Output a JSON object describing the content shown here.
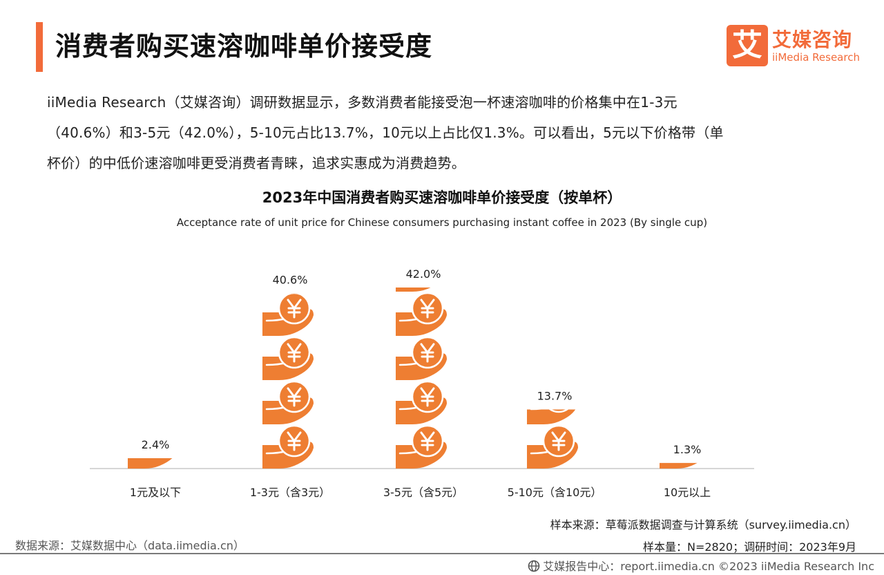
{
  "colors": {
    "accent": "#F26B3A",
    "coin": "#EE7E32",
    "coin_light": "#F5A36B"
  },
  "header": {
    "title": "消费者购买速溶咖啡单价接受度"
  },
  "logo": {
    "mark_char": "艾",
    "name_cn": "艾媒咨询",
    "name_en": "iiMedia Research"
  },
  "description": {
    "line1": "iiMedia Research（艾媒咨询）调研数据显示，多数消费者能接受泡一杯速溶咖啡的价格集中在1-3元",
    "line2": "（40.6%）和3-5元（42.0%），5-10元占比13.7%，10元以上占比仅1.3%。可以看出，5元以下价格带（单",
    "line3": "杯价）的中低价速溶咖啡更受消费者青睐，追求实惠成为消费趋势。"
  },
  "chart_data": {
    "type": "bar",
    "title": "2023年中国消费者购买速溶咖啡单价接受度（按单杯）",
    "subtitle": "Acceptance rate of unit price for Chinese consumers purchasing instant coffee in 2023 (By single cup)",
    "categories": [
      "1元及以下",
      "1-3元（含3元）",
      "3-5元（含5元）",
      "5-10元（含10元）",
      "10元以上"
    ],
    "values": [
      2.4,
      40.6,
      42.0,
      13.7,
      1.3
    ],
    "value_labels": [
      "2.4%",
      "40.6%",
      "42.0%",
      "13.7%",
      "1.3%"
    ],
    "unit": "%",
    "ylim": [
      0,
      42.0
    ],
    "icon": "yen-coin-in-hand-icon",
    "grid": false,
    "legend": "none"
  },
  "notes": {
    "source_sample": "样本来源：草莓派数据调查与计算系统（survey.iimedia.cn）",
    "sample_size": "样本量：N=2820；调研时间：2023年9月",
    "data_source": "数据来源：艾媒数据中心（data.iimedia.cn）"
  },
  "footer": {
    "text": "艾媒报告中心：report.iimedia.cn  ©2023  iiMedia Research  Inc"
  }
}
